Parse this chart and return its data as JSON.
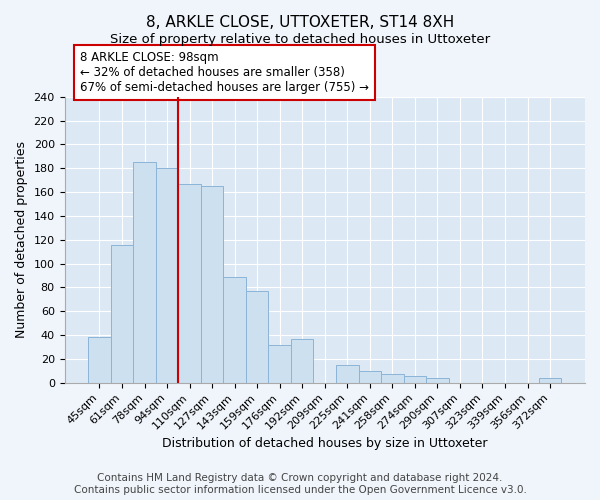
{
  "title": "8, ARKLE CLOSE, UTTOXETER, ST14 8XH",
  "subtitle": "Size of property relative to detached houses in Uttoxeter",
  "xlabel": "Distribution of detached houses by size in Uttoxeter",
  "ylabel": "Number of detached properties",
  "bar_labels": [
    "45sqm",
    "61sqm",
    "78sqm",
    "94sqm",
    "110sqm",
    "127sqm",
    "143sqm",
    "159sqm",
    "176sqm",
    "192sqm",
    "209sqm",
    "225sqm",
    "241sqm",
    "258sqm",
    "274sqm",
    "290sqm",
    "307sqm",
    "323sqm",
    "339sqm",
    "356sqm",
    "372sqm"
  ],
  "bar_values": [
    38,
    116,
    185,
    180,
    167,
    165,
    89,
    77,
    32,
    37,
    0,
    15,
    10,
    7,
    6,
    4,
    0,
    0,
    0,
    0,
    4
  ],
  "bar_color": "#cde0f0",
  "bar_edgecolor": "#8ab4d8",
  "vline_x": 3.5,
  "vline_color": "#cc0000",
  "annotation_title": "8 ARKLE CLOSE: 98sqm",
  "annotation_line1": "← 32% of detached houses are smaller (358)",
  "annotation_line2": "67% of semi-detached houses are larger (755) →",
  "annotation_box_edgecolor": "#cc0000",
  "ylim": [
    0,
    240
  ],
  "yticks": [
    0,
    20,
    40,
    60,
    80,
    100,
    120,
    140,
    160,
    180,
    200,
    220,
    240
  ],
  "footnote1": "Contains HM Land Registry data © Crown copyright and database right 2024.",
  "footnote2": "Contains public sector information licensed under the Open Government Licence v3.0.",
  "bg_color": "#f0f5fb",
  "plot_bg_color": "#dce9f5",
  "grid_color": "#ffffff",
  "title_fontsize": 11,
  "xlabel_fontsize": 9,
  "ylabel_fontsize": 9,
  "tick_fontsize": 8,
  "footnote_fontsize": 7.5
}
